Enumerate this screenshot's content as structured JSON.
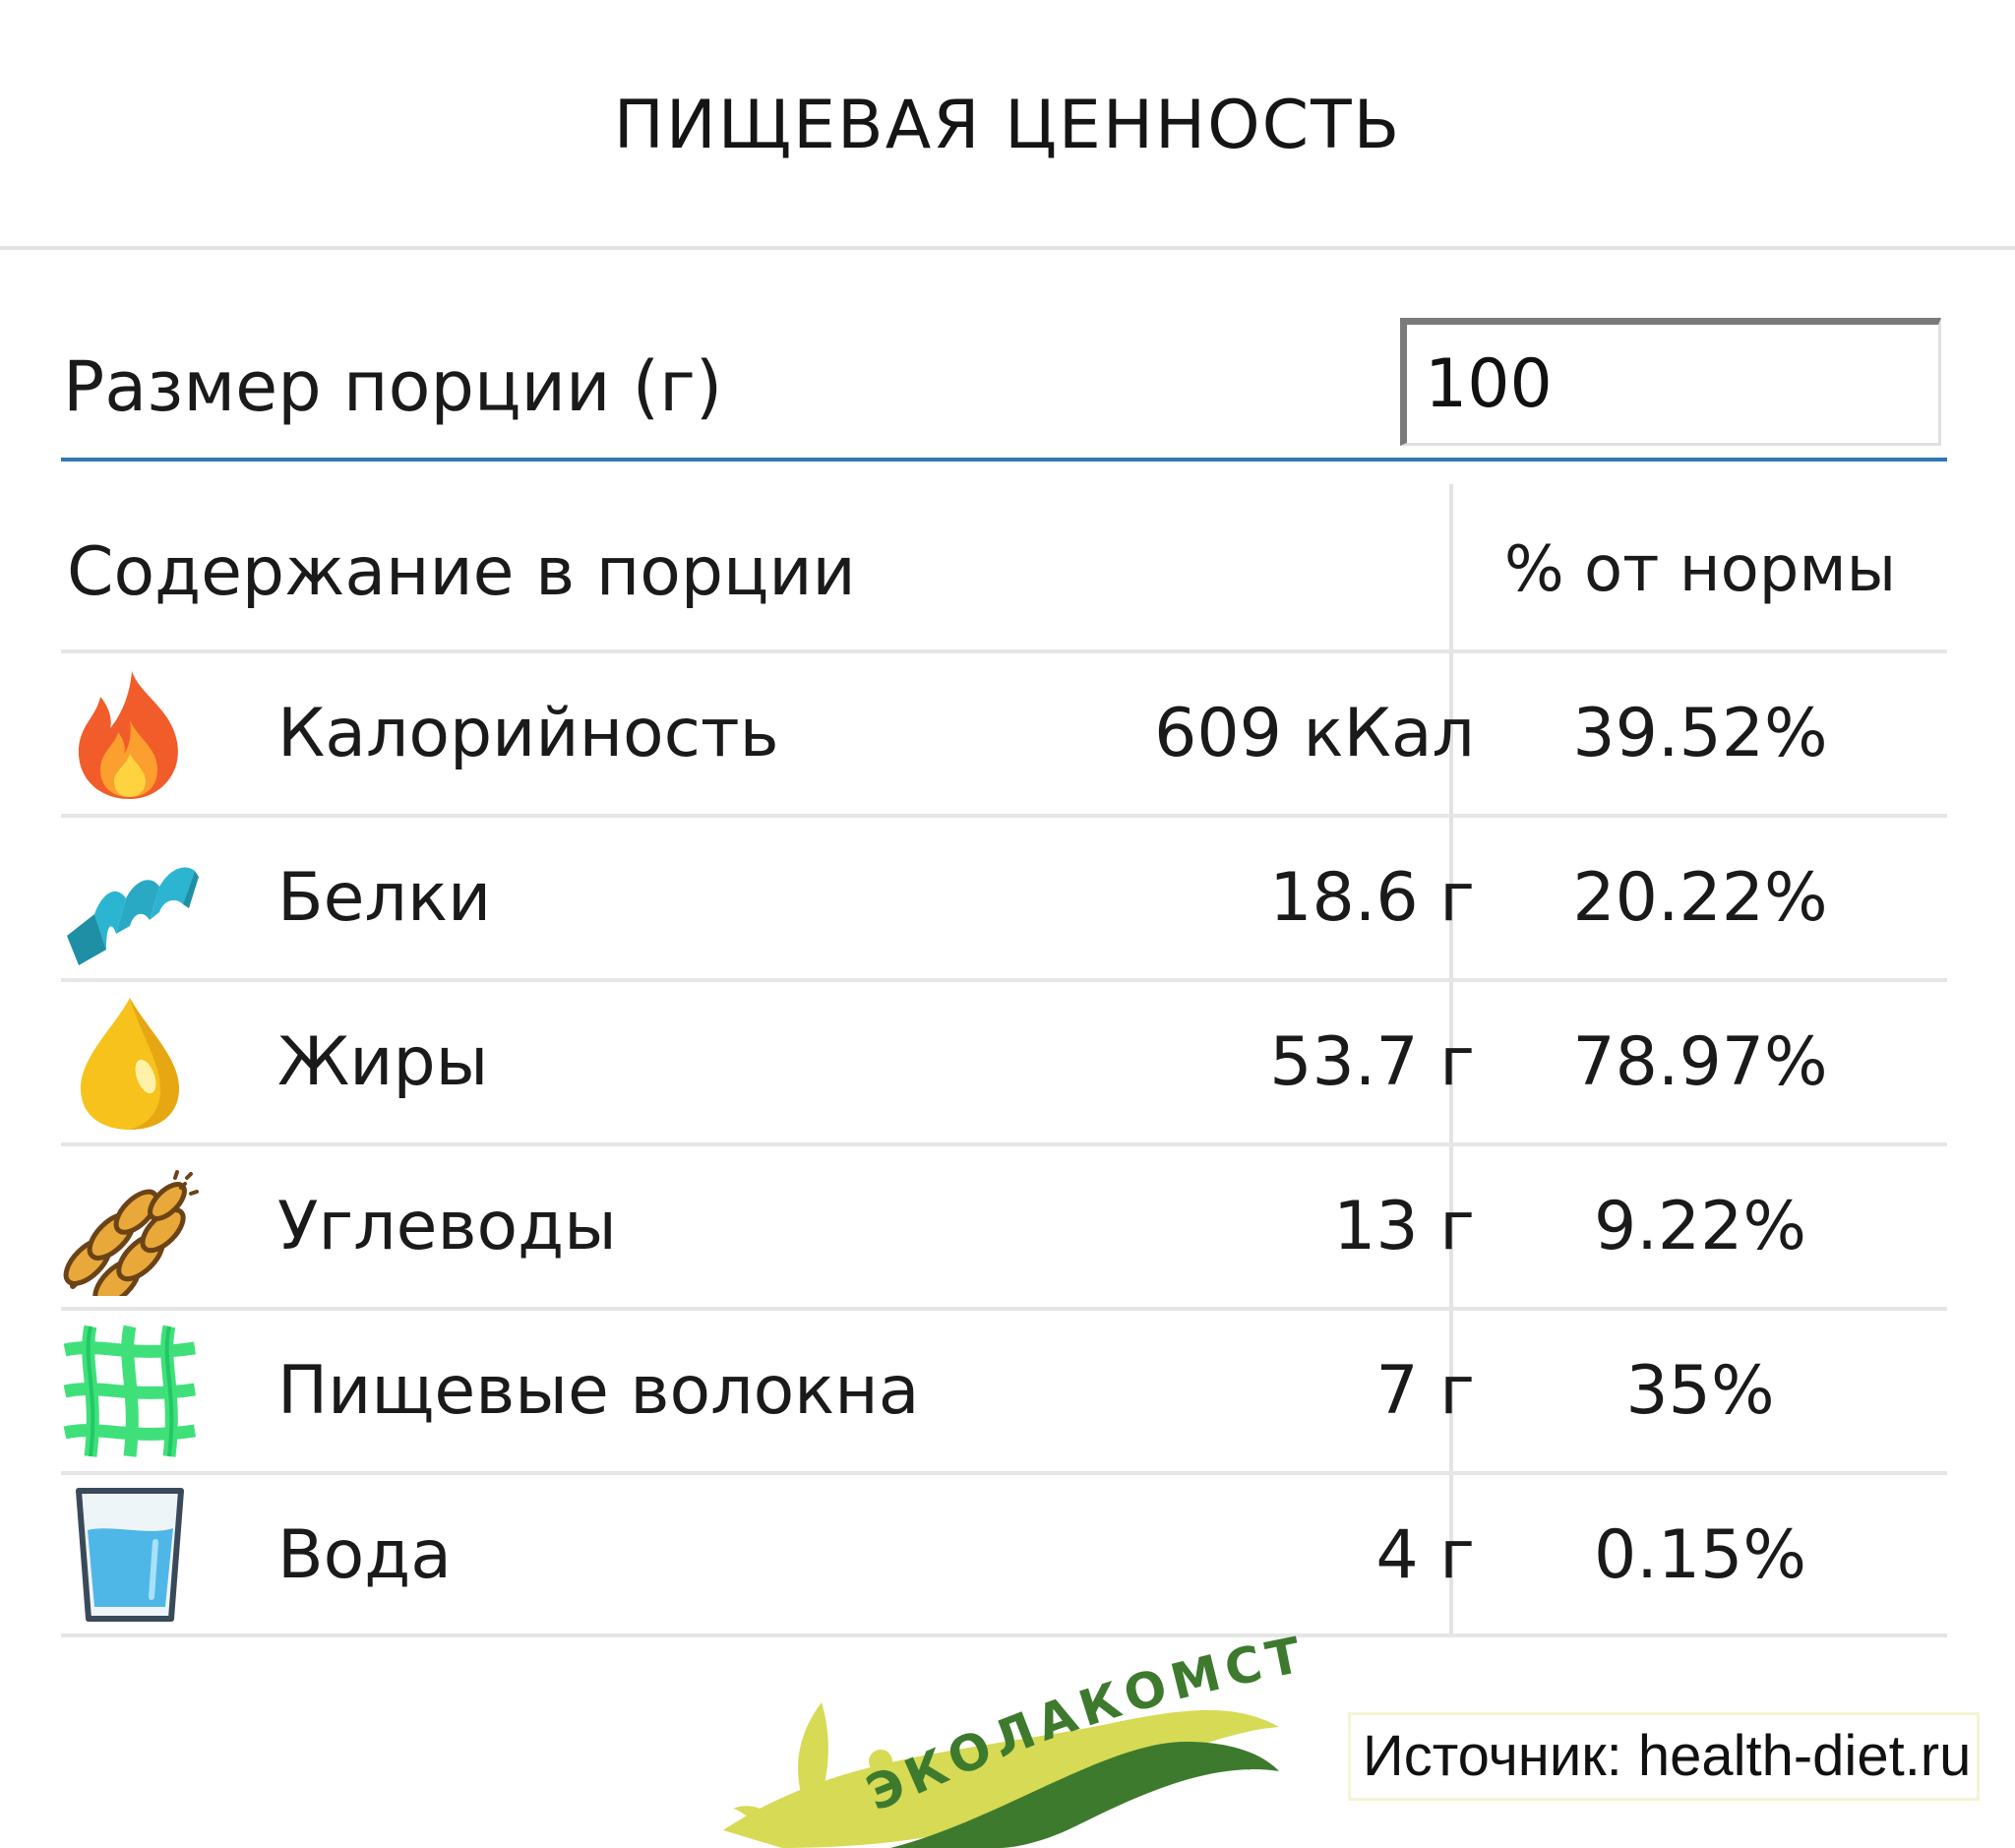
{
  "header": {
    "title": "ПИЩЕВАЯ ЦЕННОСТЬ"
  },
  "serving": {
    "label": "Размер порции (г)",
    "value": "100"
  },
  "table": {
    "content_header": "Содержание в порции",
    "pct_header": "% от нормы",
    "rows": [
      {
        "icon": "fire-icon",
        "name": "Калорийность",
        "value": "609 кКал",
        "pct": "39.52%"
      },
      {
        "icon": "protein-helix-icon",
        "name": "Белки",
        "value": "18.6 г",
        "pct": "20.22%"
      },
      {
        "icon": "oil-drop-icon",
        "name": "Жиры",
        "value": "53.7 г",
        "pct": "78.97%"
      },
      {
        "icon": "wheat-icon",
        "name": "Углеводы",
        "value": "13 г",
        "pct": "9.22%"
      },
      {
        "icon": "fiber-icon",
        "name": "Пищевые волокна",
        "value": "7 г",
        "pct": "35%"
      },
      {
        "icon": "water-glass-icon",
        "name": "Вода",
        "value": "4 г",
        "pct": "0.15%"
      }
    ]
  },
  "logo": {
    "text": "ЭКОЛАКОМСТВО"
  },
  "source": {
    "text": "Источник: health-diet.ru"
  },
  "colors": {
    "rule_blue": "#2f78b7",
    "fire": "#f25c2a",
    "protein": "#29a9c4",
    "oil": "#f6c21b",
    "wheat": "#e8a93a",
    "fiber": "#3fe07a",
    "water": "#4fb7e8",
    "logo_green": "#3d7a2e",
    "logo_yellow": "#d6da55"
  }
}
